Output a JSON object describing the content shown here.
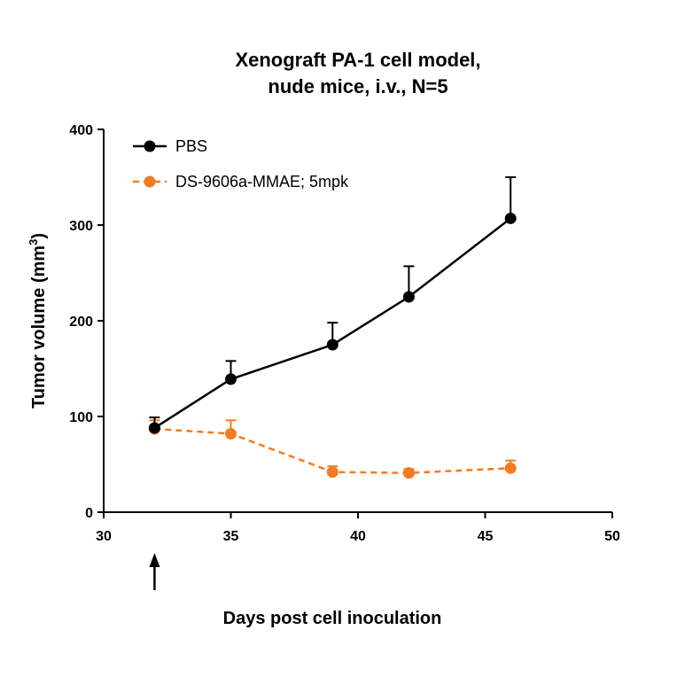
{
  "chart_data": {
    "type": "line",
    "title_lines": [
      "Xenograft PA-1 cell model,",
      "nude mice, i.v., N=5"
    ],
    "xlabel": "Days post cell inoculation",
    "ylabel": "Tumor volume (mm",
    "ylabel_sup": "3",
    "ylabel_close": ")",
    "xlim": [
      30,
      50
    ],
    "ylim": [
      0,
      400
    ],
    "xticks": [
      30,
      35,
      40,
      45,
      50
    ],
    "yticks": [
      0,
      100,
      200,
      300,
      400
    ],
    "grid": false,
    "legend_position": "top-left",
    "dosing_marker_x": 32,
    "series": [
      {
        "name": "PBS",
        "color": "#000000",
        "dashed": false,
        "x": [
          32,
          35,
          39,
          42,
          46
        ],
        "y": [
          88,
          139,
          175,
          225,
          307
        ],
        "error": [
          11,
          19,
          23,
          32,
          43
        ]
      },
      {
        "name": "DS-9606a-MMAE; 5mpk",
        "color": "#f47b20",
        "dashed": true,
        "x": [
          32,
          35,
          39,
          42,
          46
        ],
        "y": [
          87,
          82,
          42,
          41,
          46
        ],
        "error": [
          9,
          14,
          6,
          4,
          8
        ]
      }
    ]
  }
}
